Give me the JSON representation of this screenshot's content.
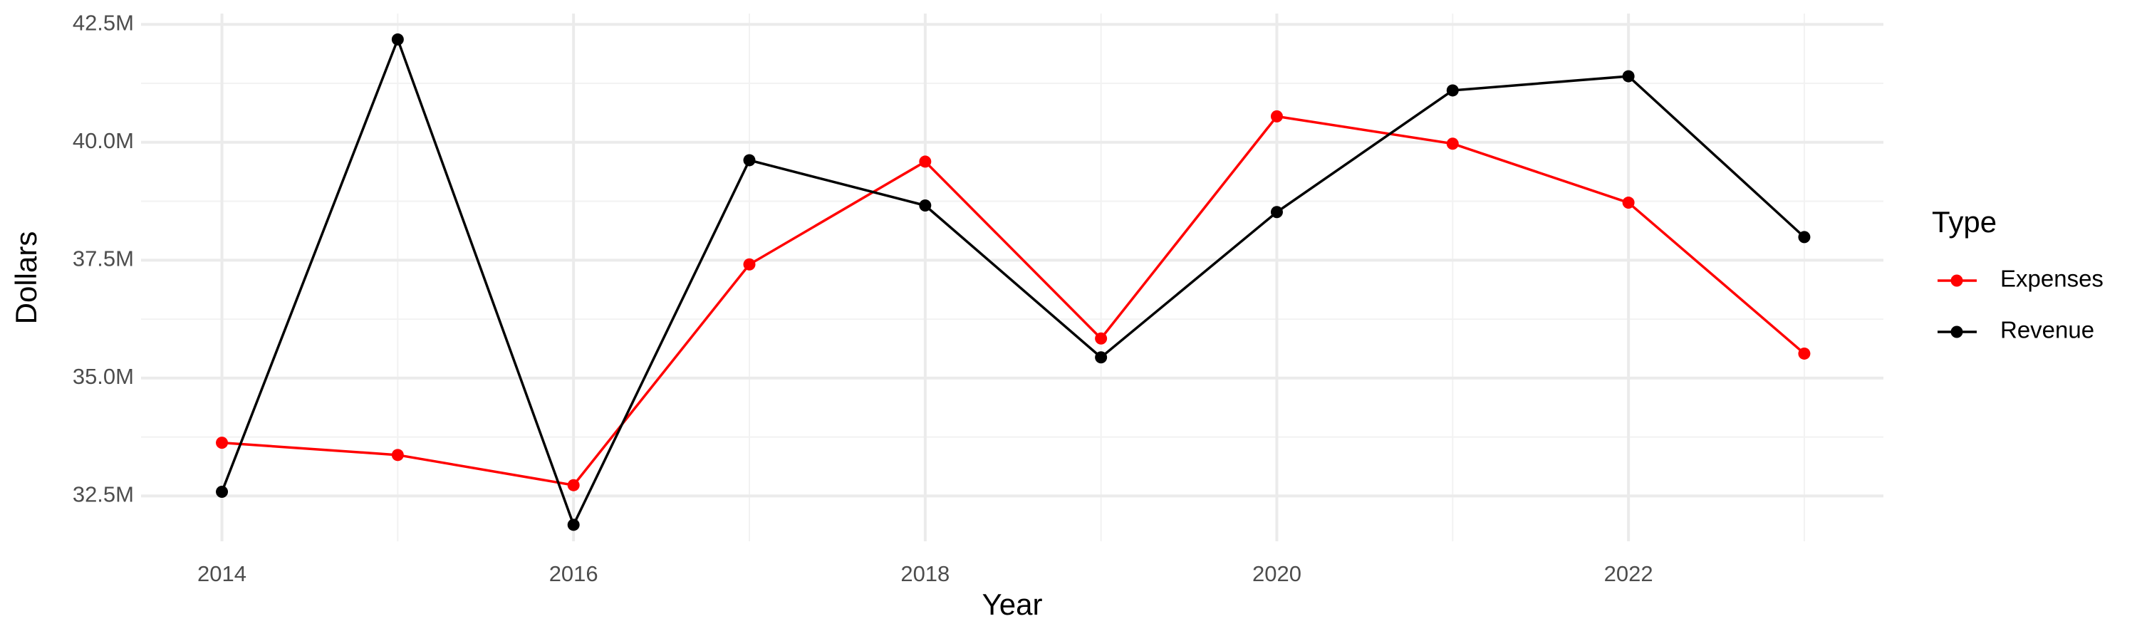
{
  "chart_data": {
    "type": "line",
    "x_label": "Year",
    "y_label": "Dollars",
    "legend_title": "Type",
    "legend_position": "right",
    "grid": true,
    "x": [
      2014,
      2015,
      2016,
      2017,
      2018,
      2019,
      2020,
      2021,
      2022,
      2023
    ],
    "series": [
      {
        "name": "Expenses",
        "color": "#ff0000",
        "values": [
          33630000,
          33370000,
          32730000,
          37410000,
          39590000,
          35840000,
          40550000,
          39970000,
          38720000,
          35520000
        ]
      },
      {
        "name": "Revenue",
        "color": "#000000",
        "values": [
          32590000,
          42180000,
          31890000,
          39620000,
          38660000,
          35440000,
          38520000,
          41100000,
          41400000,
          37990000
        ]
      }
    ],
    "xlim": [
      2013.54,
      2023.45
    ],
    "xticks": [
      2014,
      2016,
      2018,
      2020,
      2022
    ],
    "ylim": [
      31540000,
      42730000
    ],
    "yticks": [
      {
        "value": 32500000,
        "label": "32.5M"
      },
      {
        "value": 35000000,
        "label": "35.0M"
      },
      {
        "value": 37500000,
        "label": "37.5M"
      },
      {
        "value": 40000000,
        "label": "40.0M"
      },
      {
        "value": 42500000,
        "label": "42.5M"
      }
    ]
  }
}
